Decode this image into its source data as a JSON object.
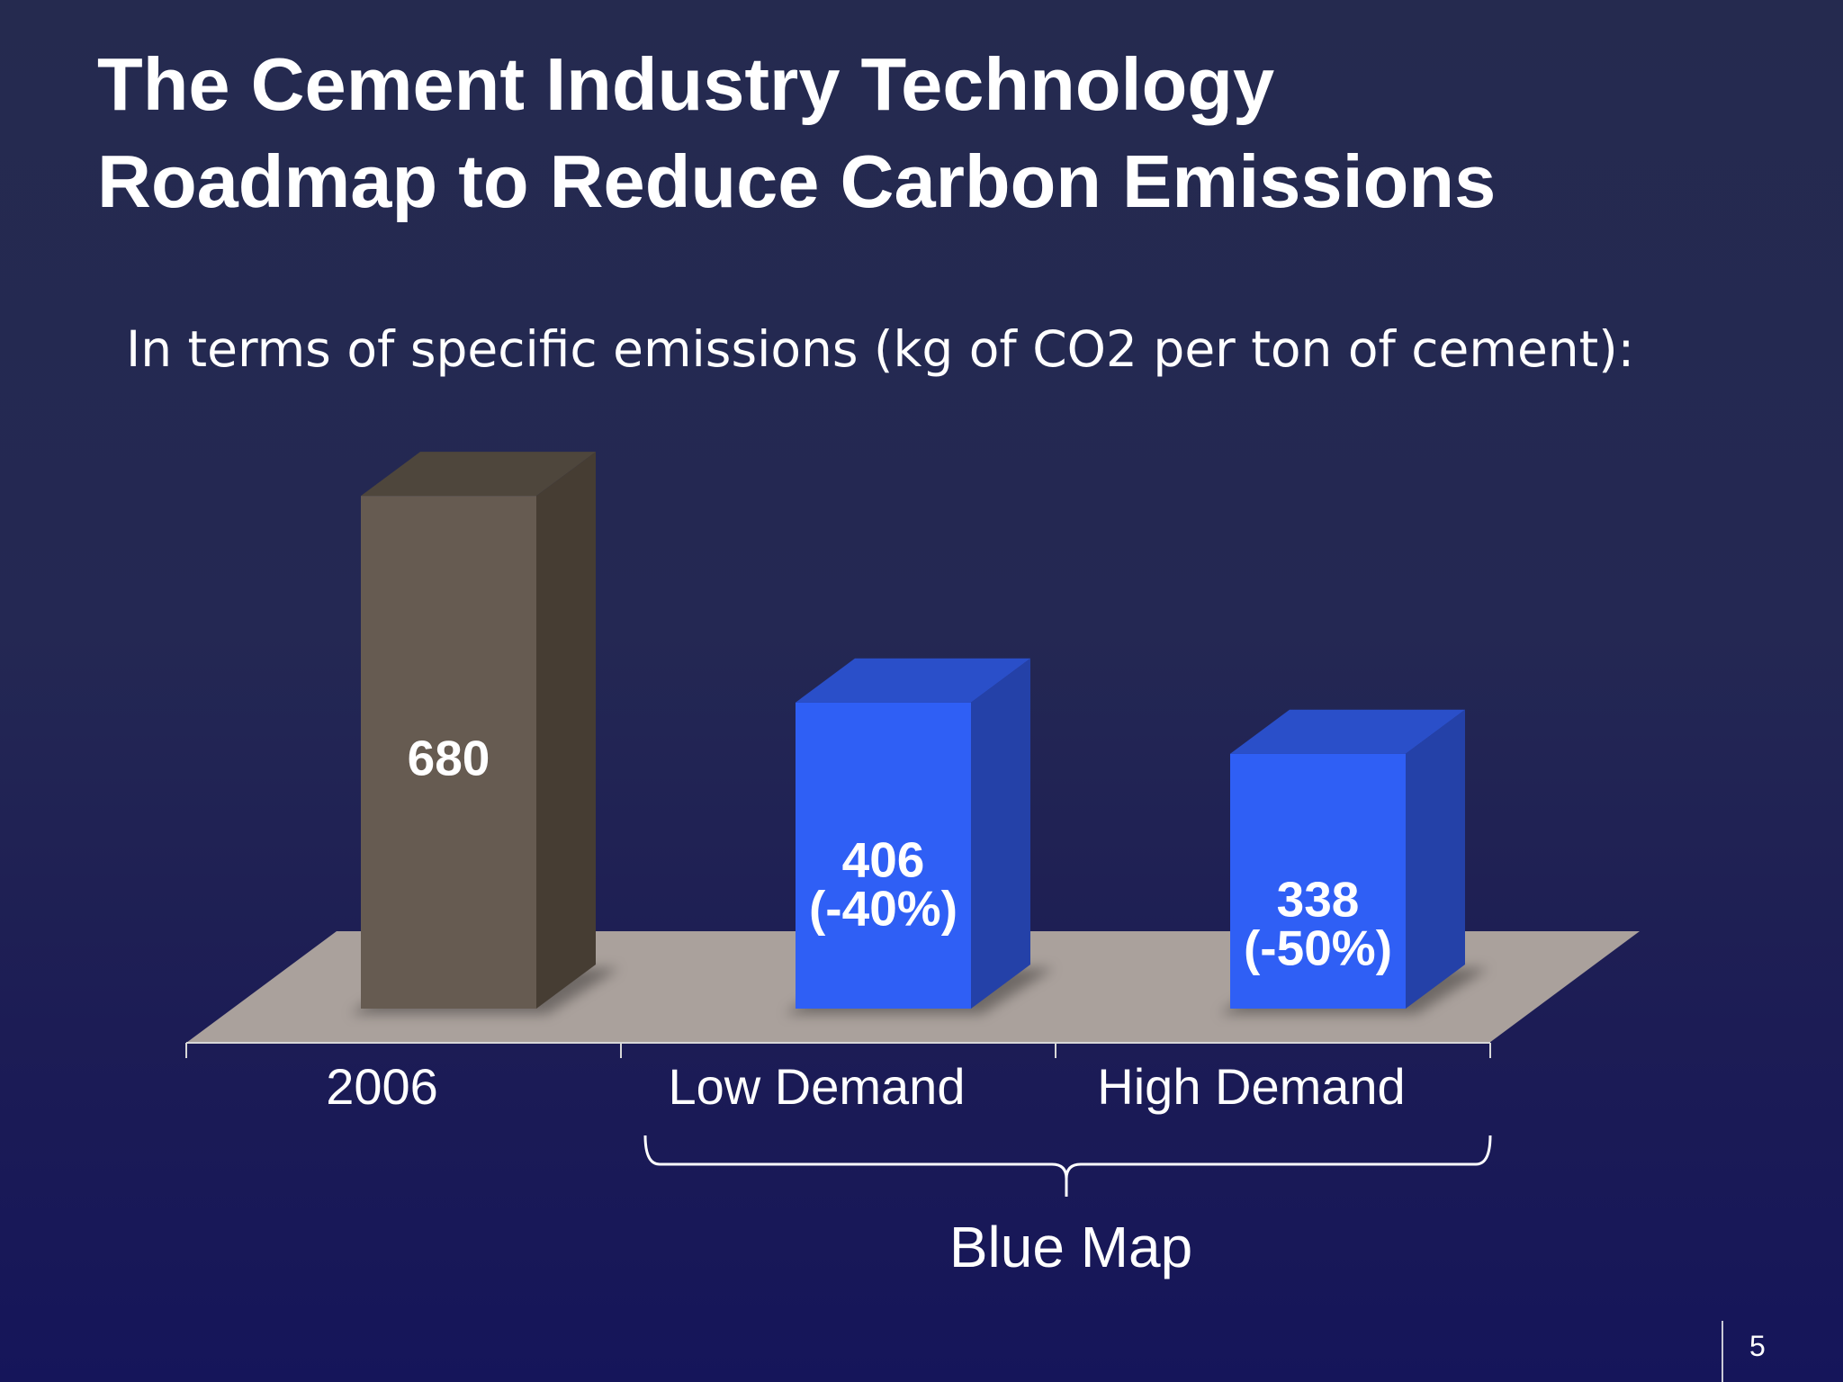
{
  "slide": {
    "title_line1": "The Cement Industry Technology",
    "title_line2": "Roadmap to Reduce Carbon Emissions",
    "subtitle": "In terms of specific emissions (kg of CO2 per ton of cement):",
    "page_number": "5"
  },
  "chart_data": {
    "type": "bar",
    "categories": [
      "2006",
      "Low Demand",
      "High Demand"
    ],
    "values": [
      680,
      406,
      338
    ],
    "data_labels": [
      [
        "680"
      ],
      [
        "406",
        "(-40%)"
      ],
      [
        "338",
        "(-50%)"
      ]
    ],
    "group_label": "Blue Map",
    "grouped_categories": [
      "Low Demand",
      "High Demand"
    ],
    "bar_colors": [
      "#665b51",
      "#2f5ff5",
      "#2f5ff5"
    ],
    "bar_side_colors": [
      "#463d33",
      "#2441a8",
      "#2441a8"
    ],
    "bar_top_colors": [
      "#4e463c",
      "#2a4fc9",
      "#2a4fc9"
    ],
    "floor_color": "#aaa19c",
    "style": "3d-column"
  }
}
